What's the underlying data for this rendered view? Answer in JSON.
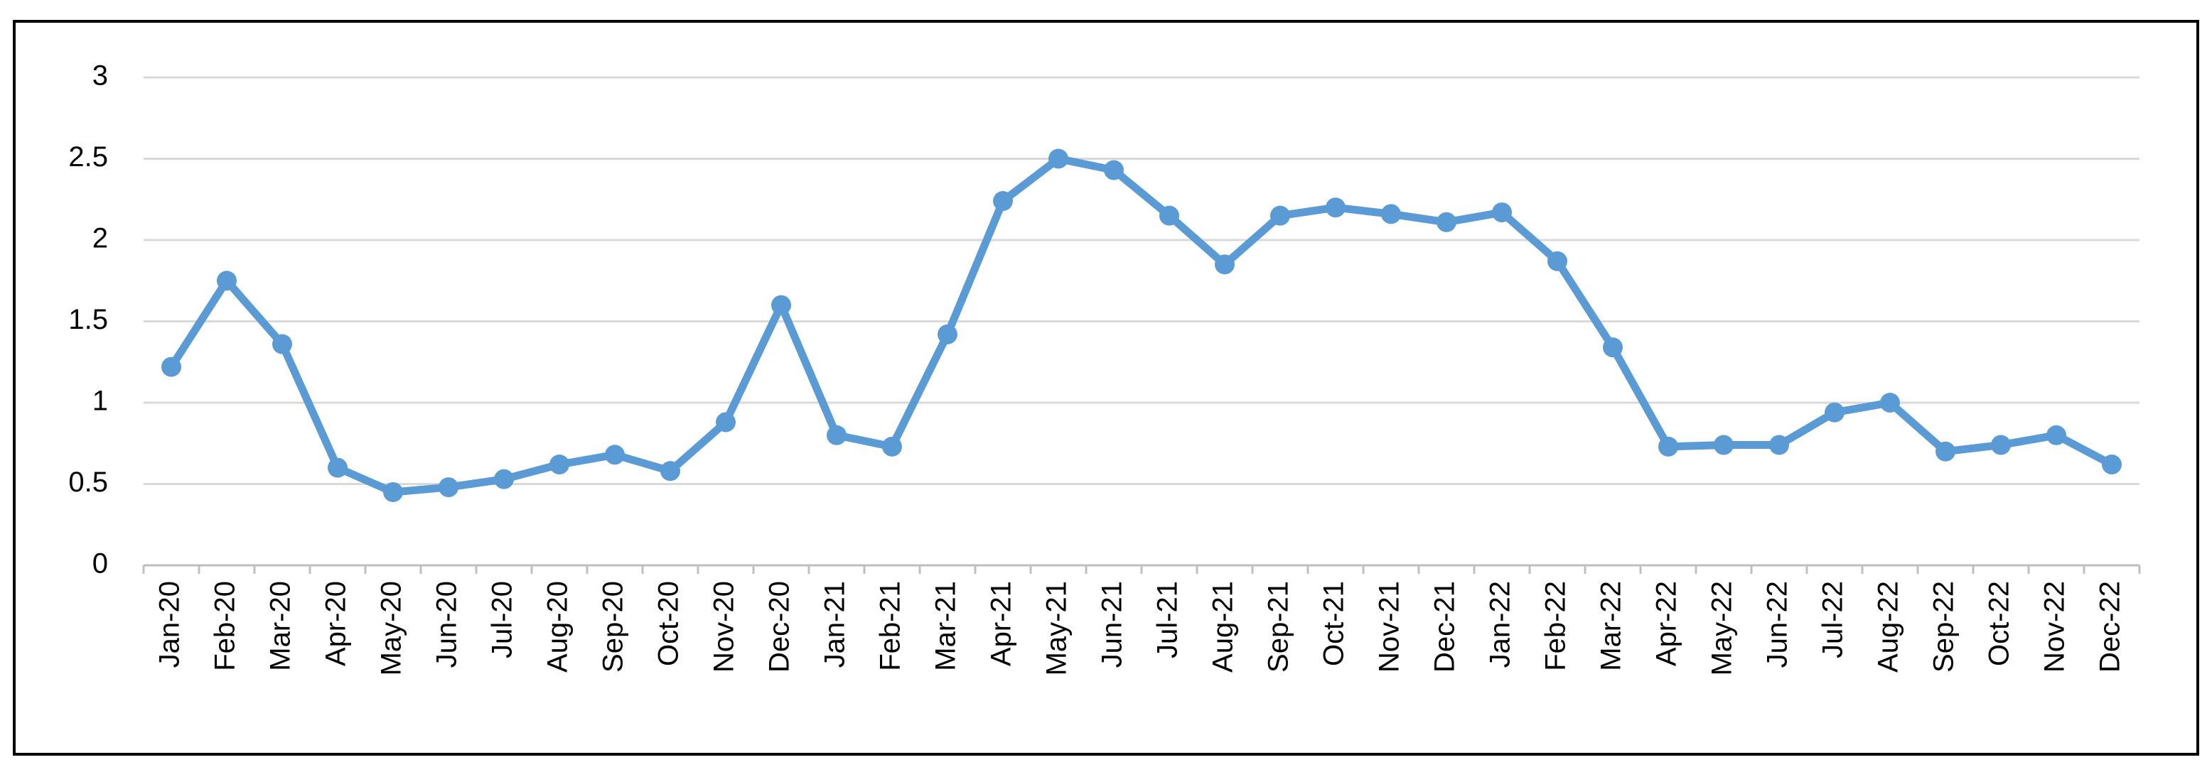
{
  "chart_data": {
    "type": "line",
    "categories": [
      "Jan-20",
      "Feb-20",
      "Mar-20",
      "Apr-20",
      "May-20",
      "Jun-20",
      "Jul-20",
      "Aug-20",
      "Sep-20",
      "Oct-20",
      "Nov-20",
      "Dec-20",
      "Jan-21",
      "Feb-21",
      "Mar-21",
      "Apr-21",
      "May-21",
      "Jun-21",
      "Jul-21",
      "Aug-21",
      "Sep-21",
      "Oct-21",
      "Nov-21",
      "Dec-21",
      "Jan-22",
      "Feb-22",
      "Mar-22",
      "Apr-22",
      "May-22",
      "Jun-22",
      "Jul-22",
      "Aug-22",
      "Sep-22",
      "Oct-22",
      "Nov-22",
      "Dec-22"
    ],
    "values": [
      1.22,
      1.75,
      1.36,
      0.6,
      0.45,
      0.48,
      0.53,
      0.62,
      0.68,
      0.58,
      0.88,
      1.6,
      0.8,
      0.73,
      1.42,
      2.24,
      2.5,
      2.43,
      2.15,
      1.85,
      2.15,
      2.2,
      2.16,
      2.11,
      2.17,
      1.87,
      1.34,
      0.73,
      0.74,
      0.74,
      0.94,
      1.0,
      0.7,
      0.74,
      0.8,
      0.62
    ],
    "color": "#5b9bd5",
    "ylim": [
      0,
      3
    ],
    "yticks": [
      0,
      {
        "value": 0.5,
        "label": "0.5"
      },
      1,
      {
        "value": 1.5,
        "label": "1.5"
      },
      2,
      {
        "value": 2.5,
        "label": "2.5"
      },
      3
    ],
    "grid": true
  }
}
